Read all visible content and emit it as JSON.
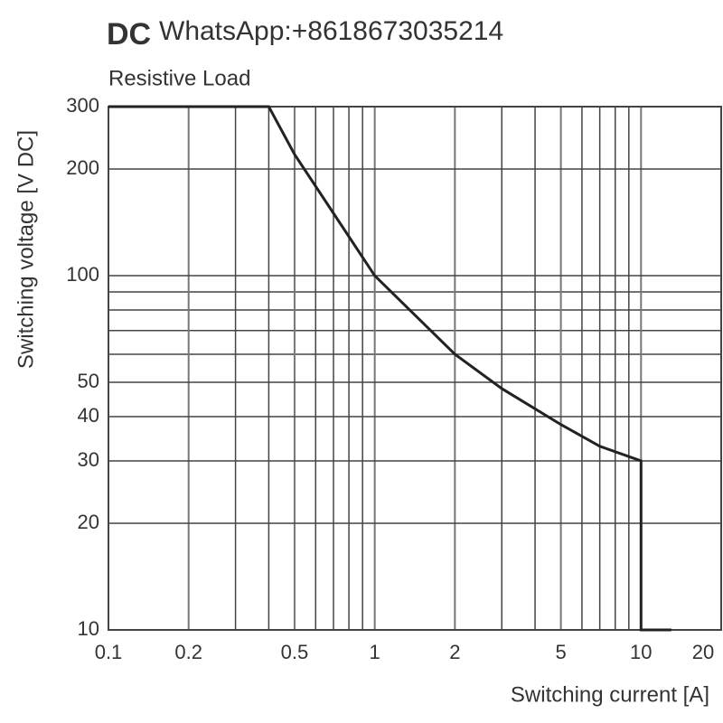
{
  "chart_data": {
    "type": "line",
    "title": "DC",
    "watermark": "WhatsApp:+8618673035214",
    "subtitle": "Resistive Load",
    "x_label": "Switching current [A]",
    "y_label": "Switching voltage [V DC]",
    "x": [
      0.1,
      0.4,
      0.5,
      0.7,
      1,
      2,
      3,
      5,
      7,
      10,
      10,
      13
    ],
    "series": [
      {
        "color": "#222222",
        "values": [
          300,
          300,
          220,
          150,
          100,
          60,
          48,
          38,
          33,
          30,
          10,
          10
        ]
      }
    ],
    "xlim": [
      0.1,
      20
    ],
    "xticks": [
      0.1,
      0.2,
      0.5,
      1,
      2,
      5,
      10,
      20
    ],
    "xminor": [
      0.3,
      0.4,
      0.6,
      0.7,
      0.8,
      0.9,
      3,
      4,
      6,
      7,
      8,
      9
    ],
    "ylim": [
      10,
      300
    ],
    "yticks": [
      10,
      20,
      30,
      40,
      50,
      100,
      200,
      300
    ],
    "yminor": [
      60,
      70,
      80,
      90
    ],
    "log_x": true,
    "log_y": true,
    "grid": true
  }
}
